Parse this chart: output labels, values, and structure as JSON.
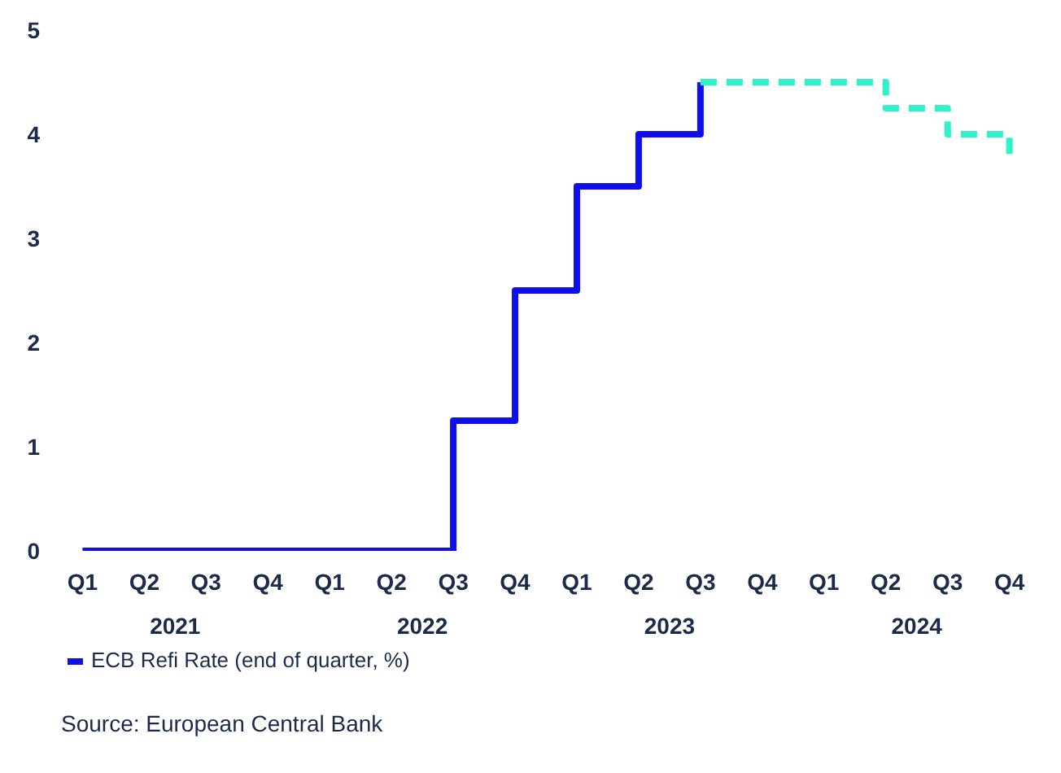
{
  "chart_data": {
    "type": "step",
    "categories": [
      "Q1",
      "Q2",
      "Q3",
      "Q4",
      "Q1",
      "Q2",
      "Q3",
      "Q4",
      "Q1",
      "Q2",
      "Q3",
      "Q4",
      "Q1",
      "Q2",
      "Q3",
      "Q4"
    ],
    "series": [
      {
        "name": "ECB Refi Rate (end of quarter, %)",
        "color": "#0f0fee",
        "line_style": "solid",
        "values": [
          0,
          0,
          0,
          0,
          0,
          0,
          1.25,
          2.5,
          3.5,
          4.0,
          4.5,
          null,
          null,
          null,
          null,
          null
        ]
      },
      {
        "color": "#2ef2c8",
        "line_style": "dashed",
        "values": [
          null,
          null,
          null,
          null,
          null,
          null,
          null,
          null,
          null,
          null,
          4.5,
          4.5,
          4.5,
          4.25,
          4.0,
          3.75
        ]
      }
    ],
    "ylim": [
      0,
      5
    ],
    "yticks": [
      0,
      1,
      2,
      3,
      4,
      5
    ],
    "grid": false,
    "legend": "bottom left",
    "annotations": [
      "2021",
      "2022",
      "2023",
      "2024",
      "Source: European Central Bank"
    ]
  }
}
